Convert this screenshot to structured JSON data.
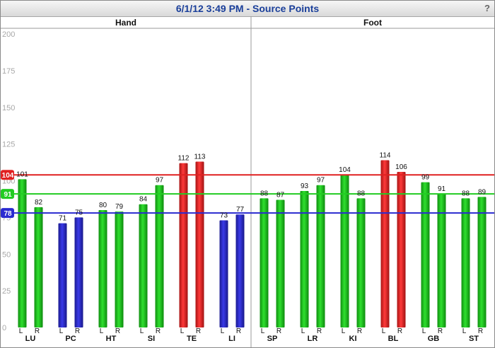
{
  "window": {
    "title": "6/1/12 3:49 PM - Source Points",
    "help_label": "?"
  },
  "chart_data": {
    "type": "bar",
    "ylim": [
      0,
      200
    ],
    "yticks": [
      0,
      25,
      50,
      75,
      100,
      125,
      150,
      175,
      200
    ],
    "grid": "none",
    "sections": [
      {
        "label": "Hand",
        "categories": [
          "LU",
          "PC",
          "HT",
          "SI",
          "TE",
          "LI"
        ]
      },
      {
        "label": "Foot",
        "categories": [
          "SP",
          "LR",
          "KI",
          "BL",
          "GB",
          "ST"
        ]
      }
    ],
    "side_labels": [
      "L",
      "R"
    ],
    "groups": [
      {
        "category": "LU",
        "L": 101,
        "R": 82,
        "L_color": "green",
        "R_color": "green"
      },
      {
        "category": "PC",
        "L": 71,
        "R": 75,
        "L_color": "blue",
        "R_color": "blue"
      },
      {
        "category": "HT",
        "L": 80,
        "R": 79,
        "L_color": "green",
        "R_color": "green"
      },
      {
        "category": "SI",
        "L": 84,
        "R": 97,
        "L_color": "green",
        "R_color": "green"
      },
      {
        "category": "TE",
        "L": 112,
        "R": 113,
        "L_color": "red",
        "R_color": "red"
      },
      {
        "category": "LI",
        "L": 73,
        "R": 77,
        "L_color": "blue",
        "R_color": "blue"
      },
      {
        "category": "SP",
        "L": 88,
        "R": 87,
        "L_color": "green",
        "R_color": "green"
      },
      {
        "category": "LR",
        "L": 93,
        "R": 97,
        "L_color": "green",
        "R_color": "green"
      },
      {
        "category": "KI",
        "L": 104,
        "R": 88,
        "L_color": "green",
        "R_color": "green"
      },
      {
        "category": "BL",
        "L": 114,
        "R": 106,
        "L_color": "red",
        "R_color": "red"
      },
      {
        "category": "GB",
        "L": 99,
        "R": 91,
        "L_color": "green",
        "R_color": "green"
      },
      {
        "category": "ST",
        "L": 88,
        "R": 89,
        "L_color": "green",
        "R_color": "green"
      }
    ],
    "reference_lines": [
      {
        "label": "104",
        "value": 104,
        "color": "#e02020"
      },
      {
        "label": "91",
        "value": 91,
        "color": "#22cc22"
      },
      {
        "label": "78",
        "value": 78,
        "color": "#2a2ad0"
      }
    ],
    "colors": {
      "green": "#1fc21f",
      "blue": "#2a2ad0",
      "red": "#e52424"
    }
  }
}
